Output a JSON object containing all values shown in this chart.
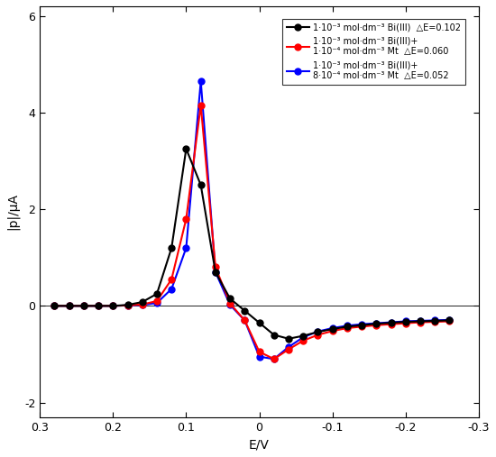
{
  "xlabel": "E/V",
  "ylabel": "|p|/μA",
  "xlim": [
    0.3,
    -0.3
  ],
  "ylim": [
    -2.3,
    6.2
  ],
  "xticks": [
    0.3,
    0.2,
    0.1,
    0.0,
    -0.1,
    -0.2,
    -0.3
  ],
  "yticks": [
    -2,
    0,
    2,
    4,
    6
  ],
  "colors": [
    "black",
    "red",
    "blue"
  ],
  "legend": [
    "1·10⁻³ mol·dm⁻³ Bi(III)  △E=0.102",
    "1·10⁻³ mol·dm⁻³ Bi(III)+\n1·10⁻⁴ mol·dm⁻³ Mt  △E=0.060",
    "1·10⁻³ mol·dm⁻³ Bi(III)+\n8·10⁻⁴ mol·dm⁻³ Mt  △E=0.052"
  ],
  "black_x": [
    0.28,
    0.26,
    0.24,
    0.22,
    0.2,
    0.18,
    0.16,
    0.14,
    0.12,
    0.1,
    0.08,
    0.06,
    0.04,
    0.02,
    0.0,
    -0.02,
    -0.04,
    -0.06,
    -0.08,
    -0.1,
    -0.12,
    -0.14,
    -0.16,
    -0.18,
    -0.2,
    -0.22,
    -0.24,
    -0.26
  ],
  "black_y": [
    0.0,
    0.0,
    0.0,
    0.0,
    0.0,
    0.02,
    0.08,
    0.25,
    1.2,
    3.25,
    2.5,
    0.7,
    0.15,
    -0.1,
    -0.35,
    -0.6,
    -0.68,
    -0.62,
    -0.54,
    -0.48,
    -0.43,
    -0.4,
    -0.37,
    -0.35,
    -0.33,
    -0.32,
    -0.31,
    -0.3
  ],
  "red_x": [
    0.28,
    0.26,
    0.24,
    0.22,
    0.2,
    0.18,
    0.16,
    0.14,
    0.12,
    0.1,
    0.08,
    0.06,
    0.04,
    0.02,
    0.0,
    -0.02,
    -0.04,
    -0.06,
    -0.08,
    -0.1,
    -0.12,
    -0.14,
    -0.16,
    -0.18,
    -0.2,
    -0.22,
    -0.24,
    -0.26
  ],
  "red_y": [
    0.0,
    0.0,
    0.0,
    0.0,
    0.0,
    0.01,
    0.03,
    0.1,
    0.55,
    1.8,
    4.15,
    0.8,
    0.05,
    -0.3,
    -0.95,
    -1.1,
    -0.9,
    -0.72,
    -0.6,
    -0.52,
    -0.46,
    -0.43,
    -0.4,
    -0.38,
    -0.36,
    -0.34,
    -0.33,
    -0.32
  ],
  "blue_x": [
    0.28,
    0.26,
    0.24,
    0.22,
    0.2,
    0.18,
    0.16,
    0.14,
    0.12,
    0.1,
    0.08,
    0.06,
    0.04,
    0.02,
    0.0,
    -0.02,
    -0.04,
    -0.06,
    -0.08,
    -0.1,
    -0.12,
    -0.14,
    -0.16,
    -0.18,
    -0.2,
    -0.22,
    -0.24,
    -0.26
  ],
  "blue_y": [
    0.0,
    0.0,
    0.0,
    0.0,
    0.0,
    0.01,
    0.02,
    0.06,
    0.35,
    1.2,
    4.65,
    0.7,
    0.02,
    -0.3,
    -1.05,
    -1.1,
    -0.85,
    -0.65,
    -0.53,
    -0.46,
    -0.41,
    -0.38,
    -0.36,
    -0.34,
    -0.32,
    -0.31,
    -0.3,
    -0.29
  ],
  "background": "white",
  "linewidth": 1.5,
  "markersize": 5
}
